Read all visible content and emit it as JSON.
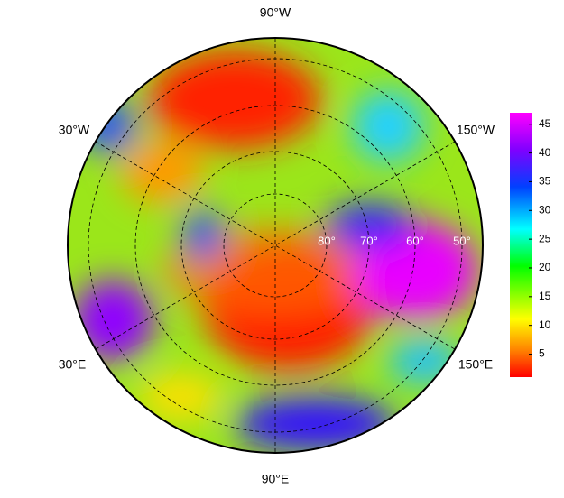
{
  "map": {
    "longitude_labels": [
      "90°W",
      "30°W",
      "150°W",
      "30°E",
      "150°E",
      "90°E"
    ],
    "latitude_labels": [
      "80°",
      "70°",
      "60°",
      "50°"
    ],
    "colorbar": {
      "lim": [
        1,
        47
      ],
      "ticks": [
        5,
        10,
        15,
        20,
        25,
        30,
        35,
        40,
        45
      ]
    }
  }
}
